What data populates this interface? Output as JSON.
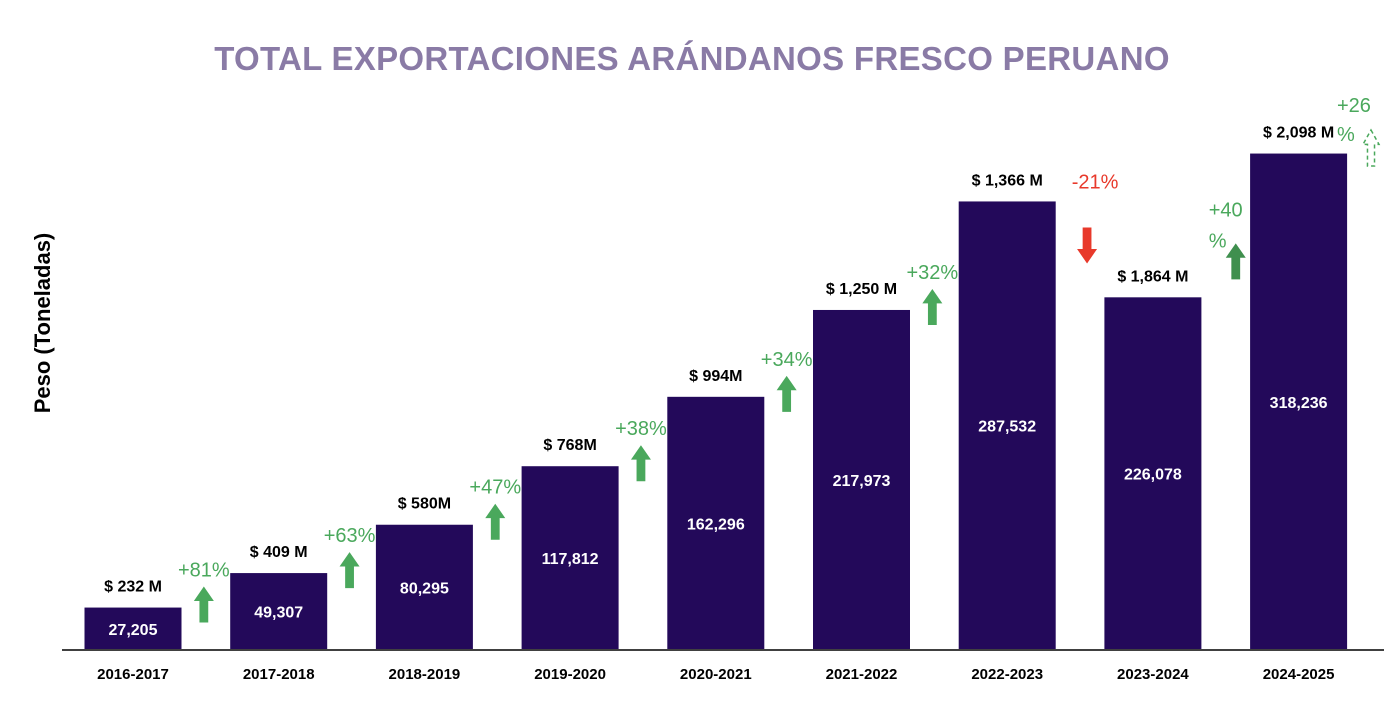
{
  "colors": {
    "bar": "#23095a",
    "title": "#8a7ba6",
    "up": "#4aa85c",
    "up_dark": "#3f8f4e",
    "down": "#e8392b",
    "axis": "#404040"
  },
  "chart_data": {
    "type": "bar",
    "title": "TOTAL EXPORTACIONES ARÁNDANOS FRESCO PERUANO",
    "xlabel": "",
    "ylabel": "Peso (Toneladas)",
    "ylim": [
      0,
      350000
    ],
    "categories": [
      "2016-2017",
      "2017-2018",
      "2018-2019",
      "2019-2020",
      "2020-2021",
      "2021-2022",
      "2022-2023",
      "2023-2024",
      "2024-2025"
    ],
    "series": [
      {
        "name": "Peso (Toneladas)",
        "values": [
          27205,
          49307,
          80295,
          117812,
          162296,
          217973,
          287532,
          226078,
          318236
        ],
        "value_labels": [
          "27,205",
          "49,307",
          "80,295",
          "117,812",
          "162,296",
          "217,973",
          "287,532",
          "226,078",
          "318,236"
        ]
      }
    ],
    "export_value_labels": [
      "$ 232 M",
      "$ 409 M",
      "$ 580M",
      "$ 768M",
      "$ 994M",
      "$ 1,250 M",
      "$ 1,366 M",
      "$ 1,864 M",
      "$ 2,098 M"
    ],
    "growth": [
      {
        "label": "+81%",
        "direction": "up"
      },
      {
        "label": "+63%",
        "direction": "up"
      },
      {
        "label": "+47%",
        "direction": "up"
      },
      {
        "label": "+38%",
        "direction": "up"
      },
      {
        "label": "+34%",
        "direction": "up"
      },
      {
        "label": "+32%",
        "direction": "up"
      },
      {
        "label": "-21%",
        "direction": "down"
      },
      {
        "label": "+40%",
        "direction": "up"
      },
      {
        "label": "+26%",
        "direction": "up"
      }
    ],
    "grid": false,
    "legend": "none"
  }
}
